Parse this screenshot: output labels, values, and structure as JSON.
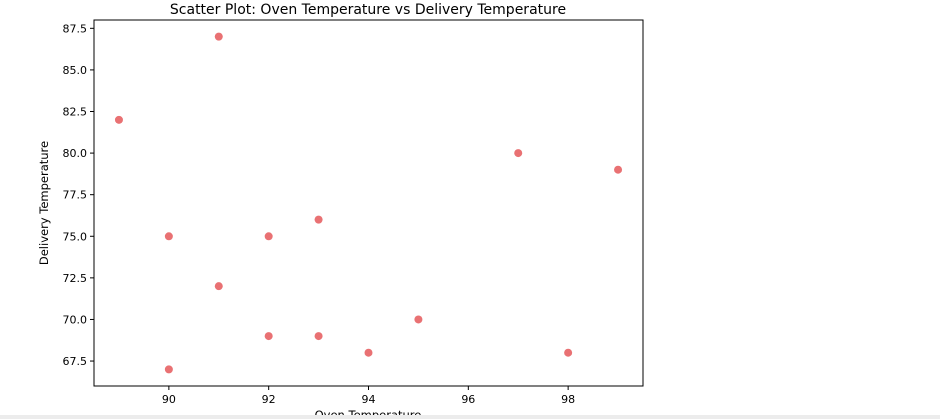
{
  "chart_data": {
    "type": "scatter",
    "title": "Scatter Plot: Oven Temperature vs Delivery Temperature",
    "xlabel": "Oven Temperature",
    "ylabel": "Delivery Temperature",
    "xlim": [
      88.5,
      99.5
    ],
    "ylim": [
      66.0,
      88.0
    ],
    "xticks": [
      90,
      92,
      94,
      96,
      98
    ],
    "xtick_labels": [
      "90",
      "92",
      "94",
      "96",
      "98"
    ],
    "yticks": [
      67.5,
      70.0,
      72.5,
      75.0,
      77.5,
      80.0,
      82.5,
      85.0,
      87.5
    ],
    "ytick_labels": [
      "67.5",
      "70.0",
      "72.5",
      "75.0",
      "77.5",
      "80.0",
      "82.5",
      "85.0",
      "87.5"
    ],
    "grid": false,
    "marker_color": "#e8696b",
    "points": [
      {
        "x": 89,
        "y": 82
      },
      {
        "x": 90,
        "y": 75
      },
      {
        "x": 90,
        "y": 67
      },
      {
        "x": 91,
        "y": 87
      },
      {
        "x": 91,
        "y": 72
      },
      {
        "x": 92,
        "y": 75
      },
      {
        "x": 92,
        "y": 69
      },
      {
        "x": 93,
        "y": 76
      },
      {
        "x": 93,
        "y": 69
      },
      {
        "x": 94,
        "y": 68
      },
      {
        "x": 95,
        "y": 70
      },
      {
        "x": 97,
        "y": 80
      },
      {
        "x": 98,
        "y": 68
      },
      {
        "x": 99,
        "y": 79
      }
    ]
  }
}
